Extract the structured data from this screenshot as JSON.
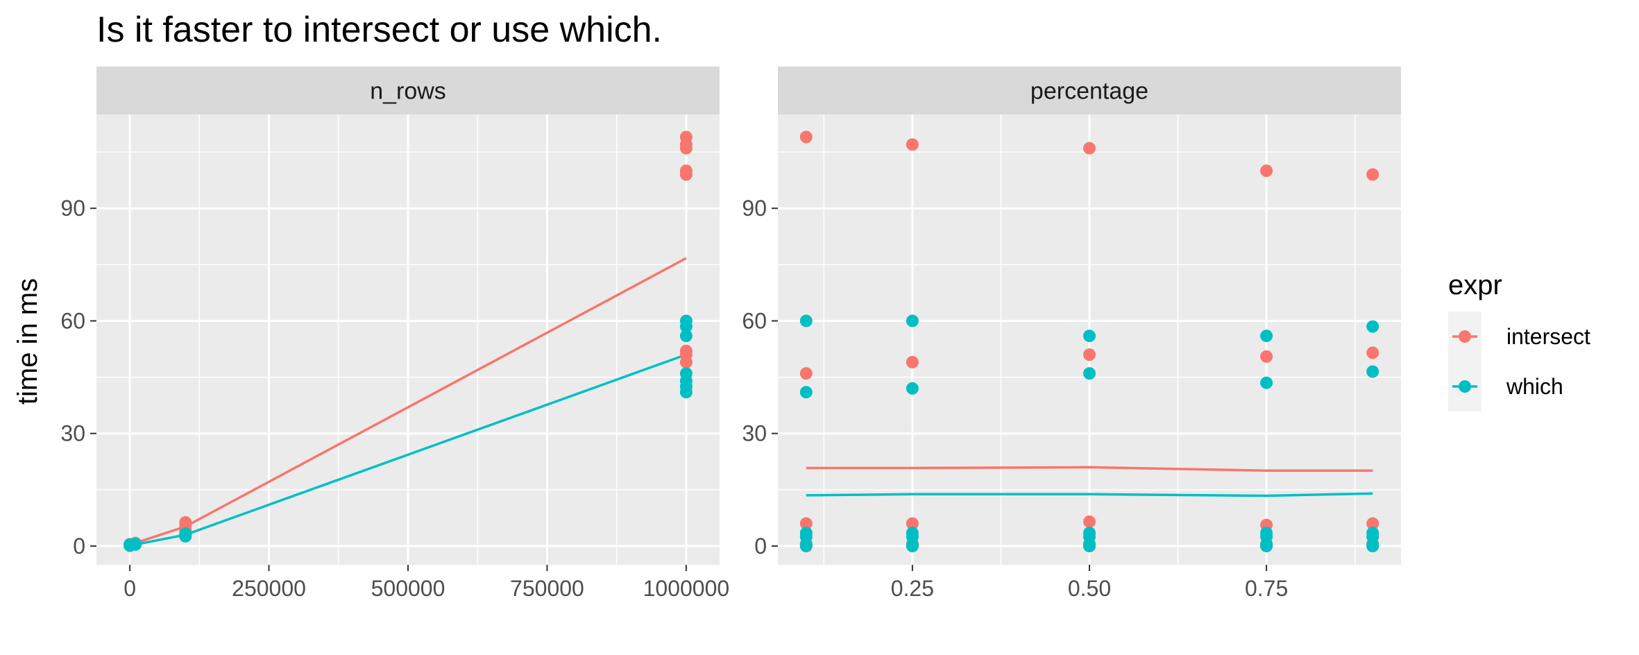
{
  "chart_data": {
    "type": "scatter",
    "title": "Is it faster to intersect or use which.",
    "ylabel": "time in ms",
    "ylim": [
      -5,
      115
    ],
    "y_ticks": [
      0,
      30,
      60,
      90
    ],
    "y_tick_labels": [
      "0",
      "30",
      "60",
      "90"
    ],
    "grid": true,
    "legend_title": "expr",
    "legend_position": "right",
    "series": [
      {
        "name": "intersect",
        "color": "#F8766D"
      },
      {
        "name": "which",
        "color": "#00BFC4"
      }
    ],
    "panels": [
      {
        "label": "n_rows",
        "xlim": [
          -60000,
          1060000
        ],
        "x_ticks": [
          0,
          250000,
          500000,
          750000,
          1000000
        ],
        "x_tick_labels": [
          "0",
          "250000",
          "500000",
          "750000",
          "1000000"
        ],
        "points": {
          "intersect": [
            [
              0,
              0.1
            ],
            [
              0,
              0.2
            ],
            [
              0,
              0.3
            ],
            [
              0,
              0.5
            ],
            [
              10000,
              0.6
            ],
            [
              10000,
              0.8
            ],
            [
              100000,
              4.2
            ],
            [
              100000,
              5.5
            ],
            [
              100000,
              6.3
            ],
            [
              1000000,
              109
            ],
            [
              1000000,
              107
            ],
            [
              1000000,
              106
            ],
            [
              1000000,
              100
            ],
            [
              1000000,
              99
            ],
            [
              1000000,
              52
            ],
            [
              1000000,
              51
            ],
            [
              1000000,
              49
            ]
          ],
          "which": [
            [
              0,
              0.1
            ],
            [
              0,
              0.2
            ],
            [
              0,
              0.3
            ],
            [
              0,
              0.4
            ],
            [
              10000,
              0.4
            ],
            [
              10000,
              0.6
            ],
            [
              100000,
              2.6
            ],
            [
              100000,
              3.0
            ],
            [
              100000,
              3.3
            ],
            [
              1000000,
              60
            ],
            [
              1000000,
              58.5
            ],
            [
              1000000,
              56
            ],
            [
              1000000,
              46
            ],
            [
              1000000,
              44
            ],
            [
              1000000,
              42.5
            ],
            [
              1000000,
              41
            ]
          ]
        },
        "lines": {
          "intersect": [
            [
              0,
              0.2
            ],
            [
              10000,
              0.8
            ],
            [
              100000,
              5.2
            ],
            [
              1000000,
              76.7
            ]
          ],
          "which": [
            [
              0,
              0.1
            ],
            [
              10000,
              0.4
            ],
            [
              100000,
              3.0
            ],
            [
              1000000,
              51
            ]
          ]
        }
      },
      {
        "label": "percentage",
        "xlim": [
          0.06,
          0.94
        ],
        "x_ticks": [
          0.25,
          0.5,
          0.75
        ],
        "x_tick_labels": [
          "0.25",
          "0.50",
          "0.75"
        ],
        "x_minor": [
          0.125,
          0.375,
          0.625,
          0.875
        ],
        "points": {
          "intersect": [
            [
              0.1,
              0
            ],
            [
              0.1,
              0.6
            ],
            [
              0.1,
              6
            ],
            [
              0.1,
              46
            ],
            [
              0.1,
              109
            ],
            [
              0.25,
              0
            ],
            [
              0.25,
              0.6
            ],
            [
              0.25,
              6
            ],
            [
              0.25,
              49
            ],
            [
              0.25,
              107
            ],
            [
              0.5,
              0
            ],
            [
              0.5,
              0.6
            ],
            [
              0.5,
              6.5
            ],
            [
              0.5,
              51
            ],
            [
              0.5,
              106
            ],
            [
              0.75,
              0
            ],
            [
              0.75,
              0.6
            ],
            [
              0.75,
              5.6
            ],
            [
              0.75,
              50.5
            ],
            [
              0.75,
              100
            ],
            [
              0.9,
              0
            ],
            [
              0.9,
              0.6
            ],
            [
              0.9,
              6
            ],
            [
              0.9,
              51.5
            ],
            [
              0.9,
              99
            ]
          ],
          "which": [
            [
              0.1,
              0
            ],
            [
              0.1,
              0.4
            ],
            [
              0.1,
              2.5
            ],
            [
              0.1,
              3.5
            ],
            [
              0.1,
              41
            ],
            [
              0.1,
              60
            ],
            [
              0.25,
              0
            ],
            [
              0.25,
              0.4
            ],
            [
              0.25,
              2.5
            ],
            [
              0.25,
              3.5
            ],
            [
              0.25,
              42
            ],
            [
              0.25,
              60
            ],
            [
              0.5,
              0
            ],
            [
              0.5,
              0.4
            ],
            [
              0.5,
              2.5
            ],
            [
              0.5,
              3.5
            ],
            [
              0.5,
              46
            ],
            [
              0.5,
              56
            ],
            [
              0.75,
              0
            ],
            [
              0.75,
              0.4
            ],
            [
              0.75,
              2.5
            ],
            [
              0.75,
              3.5
            ],
            [
              0.75,
              43.5
            ],
            [
              0.75,
              56
            ],
            [
              0.9,
              0
            ],
            [
              0.9,
              0.4
            ],
            [
              0.9,
              2.5
            ],
            [
              0.9,
              3.5
            ],
            [
              0.9,
              46.5
            ],
            [
              0.9,
              58.5
            ]
          ]
        },
        "lines": {
          "intersect": [
            [
              0.1,
              20.8
            ],
            [
              0.25,
              20.8
            ],
            [
              0.5,
              21.0
            ],
            [
              0.75,
              20.1
            ],
            [
              0.9,
              20.1
            ]
          ],
          "which": [
            [
              0.1,
              13.5
            ],
            [
              0.25,
              13.8
            ],
            [
              0.5,
              13.8
            ],
            [
              0.75,
              13.4
            ],
            [
              0.9,
              14.0
            ]
          ]
        }
      }
    ]
  }
}
